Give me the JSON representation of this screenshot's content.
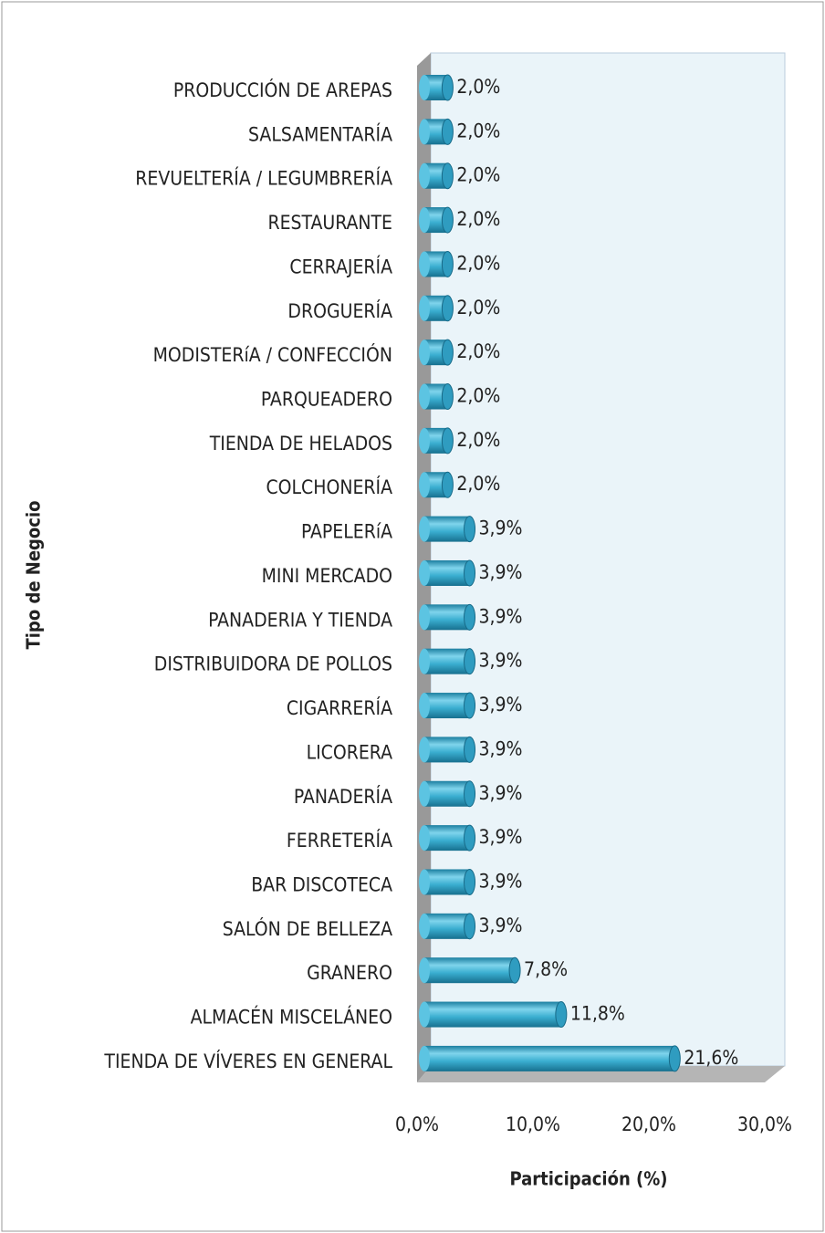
{
  "chart_data": {
    "type": "bar",
    "orientation": "horizontal",
    "x_label": "Participación (%)",
    "y_label": "Tipo de Negocio",
    "categories": [
      "PRODUCCIÓN DE AREPAS",
      "SALSAMENTARÍA",
      "REVUELTERÍA / LEGUMBRERÍA",
      "RESTAURANTE",
      "CERRAJERÍA",
      "DROGUERÍA",
      "MODISTERíA / CONFECCIÓN",
      "PARQUEADERO",
      "TIENDA DE HELADOS",
      "COLCHONERÍA",
      "PAPELERíA",
      "MINI MERCADO",
      "PANADERIA Y TIENDA",
      "DISTRIBUIDORA DE POLLOS",
      "CIGARRERÍA",
      "LICORERA",
      "PANADERÍA",
      "FERRETERÍA",
      "BAR DISCOTECA",
      "SALÓN DE BELLEZA",
      "GRANERO",
      "ALMACÉN MISCELÁNEO",
      "TIENDA DE VÍVERES EN GENERAL"
    ],
    "values": [
      2.0,
      2.0,
      2.0,
      2.0,
      2.0,
      2.0,
      2.0,
      2.0,
      2.0,
      2.0,
      3.9,
      3.9,
      3.9,
      3.9,
      3.9,
      3.9,
      3.9,
      3.9,
      3.9,
      3.9,
      7.8,
      11.8,
      21.6
    ],
    "value_labels": [
      "2,0%",
      "2,0%",
      "2,0%",
      "2,0%",
      "2,0%",
      "2,0%",
      "2,0%",
      "2,0%",
      "2,0%",
      "2,0%",
      "3,9%",
      "3,9%",
      "3,9%",
      "3,9%",
      "3,9%",
      "3,9%",
      "3,9%",
      "3,9%",
      "3,9%",
      "3,9%",
      "7,8%",
      "11,8%",
      "21,6%"
    ],
    "color": "#3aaed0",
    "xlim": [
      0,
      30
    ],
    "xticks": [
      {
        "value": 0,
        "label": "0,0%"
      },
      {
        "value": 10,
        "label": "10,0%"
      },
      {
        "value": 20,
        "label": "20,0%"
      },
      {
        "value": 30,
        "label": "30,0%"
      }
    ]
  }
}
